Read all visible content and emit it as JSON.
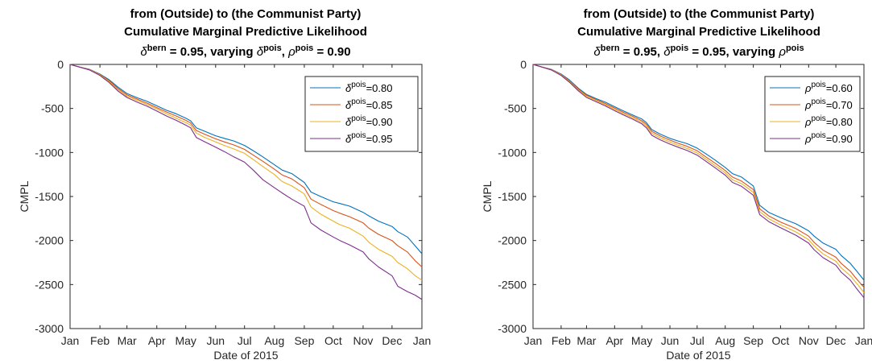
{
  "chart_data": [
    {
      "type": "line",
      "title_line1": "from (Outside) to (the Communist Party)",
      "title_line2": "Cumulative Marginal Predictive Likelihood",
      "title_line3": {
        "parts": [
          {
            "text": "δ",
            "italic": true
          },
          {
            "text": "bern",
            "sup": true
          },
          {
            "text": " = 0.95, varying "
          },
          {
            "text": "δ",
            "italic": true
          },
          {
            "text": "pois",
            "sup": true
          },
          {
            "text": ", "
          },
          {
            "text": "ρ",
            "italic": true
          },
          {
            "text": "pois",
            "sup": true
          },
          {
            "text": " = 0.90"
          }
        ]
      },
      "xlabel": "Date of 2015",
      "ylabel": "CMPL",
      "xlim": [
        0,
        365
      ],
      "ylim": [
        -3000,
        0
      ],
      "x_ticks": [
        {
          "value": 0,
          "label": "Jan"
        },
        {
          "value": 31,
          "label": "Feb"
        },
        {
          "value": 59,
          "label": "Mar"
        },
        {
          "value": 90,
          "label": "Apr"
        },
        {
          "value": 120,
          "label": "May"
        },
        {
          "value": 151,
          "label": "Jun"
        },
        {
          "value": 181,
          "label": "Jul"
        },
        {
          "value": 212,
          "label": "Aug"
        },
        {
          "value": 243,
          "label": "Sep"
        },
        {
          "value": 273,
          "label": "Oct"
        },
        {
          "value": 304,
          "label": "Nov"
        },
        {
          "value": 334,
          "label": "Dec"
        },
        {
          "value": 365,
          "label": "Jan"
        }
      ],
      "y_ticks": [
        {
          "value": 0,
          "label": "0"
        },
        {
          "value": -500,
          "label": "-500"
        },
        {
          "value": -1000,
          "label": "-1000"
        },
        {
          "value": -1500,
          "label": "-1500"
        },
        {
          "value": -2000,
          "label": "-2000"
        },
        {
          "value": -2500,
          "label": "-2500"
        },
        {
          "value": -3000,
          "label": "-3000"
        }
      ],
      "grid": false,
      "legend_position": "top-right",
      "series": [
        {
          "name_symbol": "δ",
          "name_sup": "pois",
          "name_value": "=0.80",
          "color": "#0072BD",
          "x": [
            0,
            10,
            20,
            31,
            40,
            50,
            59,
            70,
            80,
            90,
            100,
            110,
            120,
            125,
            131,
            140,
            151,
            160,
            170,
            181,
            190,
            200,
            212,
            220,
            230,
            243,
            250,
            260,
            273,
            280,
            290,
            304,
            310,
            320,
            334,
            340,
            350,
            358,
            365
          ],
          "y": [
            0,
            -30,
            -55,
            -110,
            -170,
            -260,
            -330,
            -380,
            -420,
            -470,
            -520,
            -560,
            -610,
            -640,
            -720,
            -760,
            -810,
            -840,
            -870,
            -920,
            -980,
            -1050,
            -1140,
            -1200,
            -1240,
            -1340,
            -1450,
            -1500,
            -1560,
            -1580,
            -1610,
            -1680,
            -1720,
            -1780,
            -1840,
            -1900,
            -1960,
            -2060,
            -2150
          ]
        },
        {
          "name_symbol": "δ",
          "name_sup": "pois",
          "name_value": "=0.85",
          "color": "#D95319",
          "x": [
            0,
            10,
            20,
            31,
            40,
            50,
            59,
            70,
            80,
            90,
            100,
            110,
            120,
            125,
            131,
            140,
            151,
            160,
            170,
            181,
            190,
            200,
            212,
            220,
            230,
            243,
            250,
            260,
            273,
            280,
            290,
            304,
            310,
            320,
            334,
            340,
            350,
            358,
            365
          ],
          "y": [
            0,
            -30,
            -58,
            -115,
            -180,
            -275,
            -345,
            -395,
            -440,
            -490,
            -540,
            -585,
            -635,
            -665,
            -750,
            -795,
            -845,
            -880,
            -915,
            -965,
            -1030,
            -1100,
            -1190,
            -1255,
            -1300,
            -1400,
            -1530,
            -1590,
            -1660,
            -1690,
            -1730,
            -1800,
            -1860,
            -1930,
            -2000,
            -2060,
            -2130,
            -2230,
            -2300
          ]
        },
        {
          "name_symbol": "δ",
          "name_sup": "pois",
          "name_value": "=0.90",
          "color": "#EDB120",
          "x": [
            0,
            10,
            20,
            31,
            40,
            50,
            59,
            70,
            80,
            90,
            100,
            110,
            120,
            125,
            131,
            140,
            151,
            160,
            170,
            181,
            190,
            200,
            212,
            220,
            230,
            243,
            250,
            260,
            273,
            280,
            290,
            304,
            310,
            320,
            334,
            340,
            350,
            358,
            365
          ],
          "y": [
            0,
            -30,
            -60,
            -120,
            -190,
            -290,
            -360,
            -410,
            -455,
            -505,
            -560,
            -610,
            -660,
            -690,
            -780,
            -830,
            -880,
            -920,
            -960,
            -1010,
            -1080,
            -1160,
            -1250,
            -1330,
            -1380,
            -1470,
            -1620,
            -1700,
            -1780,
            -1820,
            -1860,
            -1950,
            -2020,
            -2100,
            -2180,
            -2250,
            -2320,
            -2400,
            -2450
          ]
        },
        {
          "name_symbol": "δ",
          "name_sup": "pois",
          "name_value": "=0.95",
          "color": "#7E2F8E",
          "x": [
            0,
            10,
            20,
            31,
            40,
            50,
            59,
            70,
            80,
            90,
            100,
            110,
            120,
            125,
            131,
            140,
            151,
            160,
            170,
            181,
            190,
            200,
            212,
            220,
            230,
            243,
            250,
            260,
            273,
            280,
            290,
            304,
            310,
            320,
            334,
            340,
            350,
            358,
            365
          ],
          "y": [
            0,
            -30,
            -62,
            -125,
            -200,
            -305,
            -375,
            -430,
            -475,
            -530,
            -585,
            -635,
            -690,
            -720,
            -830,
            -880,
            -940,
            -990,
            -1050,
            -1110,
            -1200,
            -1310,
            -1400,
            -1460,
            -1530,
            -1610,
            -1800,
            -1880,
            -1960,
            -2000,
            -2050,
            -2130,
            -2210,
            -2300,
            -2400,
            -2520,
            -2580,
            -2620,
            -2670
          ]
        }
      ]
    },
    {
      "type": "line",
      "title_line1": "from (Outside) to (the Communist Party)",
      "title_line2": "Cumulative Marginal Predictive Likelihood",
      "title_line3": {
        "parts": [
          {
            "text": "δ",
            "italic": true
          },
          {
            "text": "bern",
            "sup": true
          },
          {
            "text": " = 0.95, "
          },
          {
            "text": "δ",
            "italic": true
          },
          {
            "text": "pois",
            "sup": true
          },
          {
            "text": " = 0.95, varying "
          },
          {
            "text": "ρ",
            "italic": true
          },
          {
            "text": "pois",
            "sup": true
          }
        ]
      },
      "xlabel": "Date of 2015",
      "ylabel": "CMPL",
      "xlim": [
        0,
        365
      ],
      "ylim": [
        -3000,
        0
      ],
      "x_ticks": [
        {
          "value": 0,
          "label": "Jan"
        },
        {
          "value": 31,
          "label": "Feb"
        },
        {
          "value": 59,
          "label": "Mar"
        },
        {
          "value": 90,
          "label": "Apr"
        },
        {
          "value": 120,
          "label": "May"
        },
        {
          "value": 151,
          "label": "Jun"
        },
        {
          "value": 181,
          "label": "Jul"
        },
        {
          "value": 212,
          "label": "Aug"
        },
        {
          "value": 243,
          "label": "Sep"
        },
        {
          "value": 273,
          "label": "Oct"
        },
        {
          "value": 304,
          "label": "Nov"
        },
        {
          "value": 334,
          "label": "Dec"
        },
        {
          "value": 365,
          "label": "Jan"
        }
      ],
      "y_ticks": [
        {
          "value": 0,
          "label": "0"
        },
        {
          "value": -500,
          "label": "-500"
        },
        {
          "value": -1000,
          "label": "-1000"
        },
        {
          "value": -1500,
          "label": "-1500"
        },
        {
          "value": -2000,
          "label": "-2000"
        },
        {
          "value": -2500,
          "label": "-2500"
        },
        {
          "value": -3000,
          "label": "-3000"
        }
      ],
      "grid": false,
      "legend_position": "top-right",
      "series": [
        {
          "name_symbol": "ρ",
          "name_sup": "pois",
          "name_value": "=0.60",
          "color": "#0072BD",
          "x": [
            0,
            10,
            20,
            31,
            40,
            50,
            59,
            70,
            80,
            90,
            100,
            110,
            120,
            125,
            131,
            140,
            151,
            160,
            170,
            181,
            190,
            200,
            212,
            220,
            230,
            243,
            250,
            260,
            273,
            280,
            290,
            304,
            310,
            320,
            334,
            340,
            350,
            358,
            365
          ],
          "y": [
            0,
            -30,
            -55,
            -110,
            -175,
            -270,
            -340,
            -390,
            -430,
            -480,
            -530,
            -575,
            -620,
            -660,
            -740,
            -790,
            -840,
            -870,
            -900,
            -950,
            -1010,
            -1080,
            -1170,
            -1240,
            -1280,
            -1380,
            -1600,
            -1680,
            -1740,
            -1770,
            -1810,
            -1890,
            -1950,
            -2030,
            -2100,
            -2170,
            -2260,
            -2360,
            -2450
          ]
        },
        {
          "name_symbol": "ρ",
          "name_sup": "pois",
          "name_value": "=0.70",
          "color": "#D95319",
          "x": [
            0,
            10,
            20,
            31,
            40,
            50,
            59,
            70,
            80,
            90,
            100,
            110,
            120,
            125,
            131,
            140,
            151,
            160,
            170,
            181,
            190,
            200,
            212,
            220,
            230,
            243,
            250,
            260,
            273,
            280,
            290,
            304,
            310,
            320,
            334,
            340,
            350,
            358,
            365
          ],
          "y": [
            0,
            -30,
            -58,
            -115,
            -185,
            -280,
            -350,
            -400,
            -445,
            -495,
            -545,
            -590,
            -640,
            -680,
            -760,
            -810,
            -860,
            -895,
            -930,
            -980,
            -1045,
            -1115,
            -1205,
            -1280,
            -1325,
            -1420,
            -1640,
            -1720,
            -1790,
            -1820,
            -1865,
            -1950,
            -2020,
            -2110,
            -2190,
            -2260,
            -2350,
            -2450,
            -2530
          ]
        },
        {
          "name_symbol": "ρ",
          "name_sup": "pois",
          "name_value": "=0.80",
          "color": "#EDB120",
          "x": [
            0,
            10,
            20,
            31,
            40,
            50,
            59,
            70,
            80,
            90,
            100,
            110,
            120,
            125,
            131,
            140,
            151,
            160,
            170,
            181,
            190,
            200,
            212,
            220,
            230,
            243,
            250,
            260,
            273,
            280,
            290,
            304,
            310,
            320,
            334,
            340,
            350,
            358,
            365
          ],
          "y": [
            0,
            -30,
            -60,
            -120,
            -192,
            -290,
            -362,
            -412,
            -458,
            -510,
            -560,
            -607,
            -658,
            -700,
            -782,
            -832,
            -882,
            -918,
            -955,
            -1005,
            -1070,
            -1142,
            -1232,
            -1310,
            -1355,
            -1452,
            -1672,
            -1752,
            -1822,
            -1855,
            -1902,
            -1990,
            -2062,
            -2152,
            -2235,
            -2310,
            -2400,
            -2500,
            -2590
          ]
        },
        {
          "name_symbol": "ρ",
          "name_sup": "pois",
          "name_value": "=0.90",
          "color": "#7E2F8E",
          "x": [
            0,
            10,
            20,
            31,
            40,
            50,
            59,
            70,
            80,
            90,
            100,
            110,
            120,
            125,
            131,
            140,
            151,
            160,
            170,
            181,
            190,
            200,
            212,
            220,
            230,
            243,
            250,
            260,
            273,
            280,
            290,
            304,
            310,
            320,
            334,
            340,
            350,
            358,
            365
          ],
          "y": [
            0,
            -30,
            -62,
            -125,
            -200,
            -300,
            -375,
            -425,
            -472,
            -525,
            -575,
            -622,
            -675,
            -720,
            -805,
            -855,
            -905,
            -940,
            -978,
            -1030,
            -1095,
            -1168,
            -1258,
            -1340,
            -1385,
            -1485,
            -1705,
            -1785,
            -1855,
            -1890,
            -1940,
            -2030,
            -2105,
            -2195,
            -2280,
            -2360,
            -2450,
            -2560,
            -2650
          ]
        }
      ]
    }
  ]
}
